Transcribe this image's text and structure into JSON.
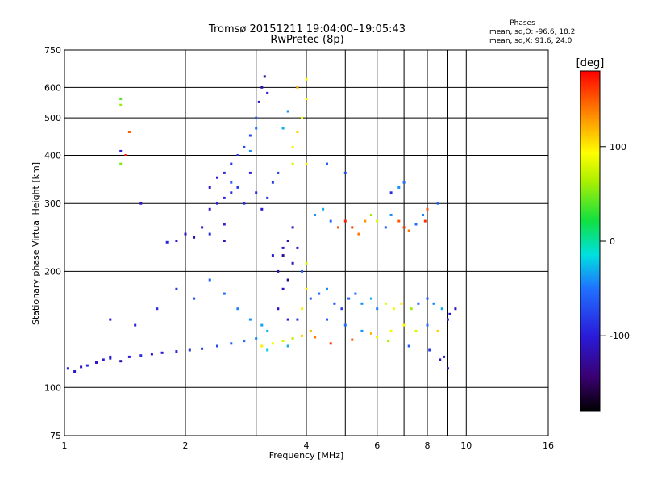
{
  "header": {
    "title": "Tromsø 20151211 19:04:00–19:05:43",
    "subtitle": "RwPretec (8p)",
    "phases_title": "Phases",
    "phases_o": "mean, sd,O: -96.6, 18.2",
    "phases_x": "mean, sd,X:  91.6, 24.0"
  },
  "chart_data": {
    "type": "scatter",
    "xlabel": "Frequency [MHz]",
    "ylabel": "Stationary phase Virtual Height [km]",
    "x_scale": "log",
    "y_scale": "log",
    "xlim": [
      1,
      16
    ],
    "ylim": [
      75,
      750
    ],
    "x_ticks": [
      1,
      2,
      4,
      6,
      8,
      10,
      16
    ],
    "x_minor_grid": [
      3,
      5,
      7,
      9
    ],
    "y_ticks": [
      75,
      100,
      200,
      300,
      400,
      500,
      600,
      750
    ],
    "grid": true,
    "colorbar": {
      "label": "[deg]",
      "range": [
        -180,
        180
      ],
      "ticks": [
        100,
        0,
        -100
      ],
      "colormap": "rainbow (black–purple–blue–cyan–green–yellow–red)"
    },
    "series": [
      {
        "points": [
          [
            1.02,
            112,
            -95
          ],
          [
            1.06,
            110,
            -100
          ],
          [
            1.1,
            113,
            -110
          ],
          [
            1.14,
            114,
            -90
          ],
          [
            1.2,
            116,
            -105
          ],
          [
            1.25,
            118,
            -100
          ],
          [
            1.3,
            119,
            -95
          ],
          [
            1.38,
            117,
            -120
          ],
          [
            1.45,
            120,
            -100
          ],
          [
            1.55,
            121,
            -90
          ],
          [
            1.65,
            122,
            -105
          ],
          [
            1.75,
            123,
            -100
          ],
          [
            1.9,
            124,
            -95
          ],
          [
            2.05,
            125,
            -85
          ],
          [
            2.2,
            126,
            -80
          ],
          [
            2.4,
            128,
            -70
          ],
          [
            2.6,
            130,
            -60
          ],
          [
            2.8,
            132,
            -50
          ],
          [
            3.0,
            134,
            -40
          ],
          [
            3.2,
            140,
            -30
          ],
          [
            1.3,
            150,
            -100
          ],
          [
            1.5,
            145,
            -95
          ],
          [
            1.7,
            160,
            -90
          ],
          [
            1.9,
            180,
            -80
          ],
          [
            2.1,
            170,
            -70
          ],
          [
            2.3,
            190,
            -60
          ],
          [
            2.5,
            175,
            -55
          ],
          [
            2.7,
            160,
            -45
          ],
          [
            2.9,
            150,
            -40
          ],
          [
            3.1,
            145,
            -35
          ],
          [
            1.38,
            560,
            40
          ],
          [
            1.38,
            540,
            60
          ],
          [
            1.45,
            460,
            150
          ],
          [
            1.38,
            410,
            -100
          ],
          [
            1.42,
            400,
            170
          ],
          [
            1.38,
            380,
            50
          ],
          [
            1.55,
            300,
            -110
          ],
          [
            1.3,
            120,
            -100
          ]
        ]
      },
      {
        "points": [
          [
            2.3,
            290,
            -100
          ],
          [
            2.4,
            300,
            -95
          ],
          [
            2.5,
            310,
            -90
          ],
          [
            2.6,
            320,
            -85
          ],
          [
            2.7,
            330,
            -80
          ],
          [
            2.3,
            330,
            -105
          ],
          [
            2.4,
            350,
            -100
          ],
          [
            2.5,
            360,
            -90
          ],
          [
            2.6,
            380,
            -85
          ],
          [
            2.7,
            400,
            -80
          ],
          [
            2.8,
            420,
            -75
          ],
          [
            2.9,
            450,
            -70
          ],
          [
            3.0,
            500,
            -65
          ],
          [
            3.05,
            550,
            -110
          ],
          [
            3.1,
            600,
            -120
          ],
          [
            3.15,
            640,
            -130
          ],
          [
            3.2,
            580,
            -100
          ],
          [
            2.9,
            360,
            -95
          ],
          [
            3.0,
            320,
            -90
          ],
          [
            3.1,
            290,
            -100
          ],
          [
            3.2,
            310,
            -85
          ],
          [
            3.3,
            340,
            -80
          ],
          [
            3.4,
            360,
            -75
          ],
          [
            2.2,
            260,
            -100
          ],
          [
            2.0,
            250,
            -110
          ],
          [
            2.5,
            265,
            -95
          ],
          [
            2.8,
            300,
            -90
          ],
          [
            2.6,
            340,
            -60
          ],
          [
            2.9,
            410,
            -40
          ],
          [
            3.0,
            470,
            -50
          ]
        ]
      },
      {
        "points": [
          [
            3.5,
            220,
            -130
          ],
          [
            3.6,
            240,
            -120
          ],
          [
            3.7,
            260,
            -110
          ],
          [
            3.4,
            200,
            -120
          ],
          [
            3.5,
            180,
            -110
          ],
          [
            3.6,
            190,
            -130
          ],
          [
            3.7,
            210,
            -115
          ],
          [
            3.8,
            230,
            -100
          ],
          [
            3.9,
            200,
            -60
          ],
          [
            4.0,
            210,
            80
          ],
          [
            4.0,
            180,
            100
          ],
          [
            3.9,
            160,
            90
          ],
          [
            3.8,
            150,
            -80
          ],
          [
            3.6,
            150,
            -100
          ],
          [
            3.4,
            160,
            -110
          ],
          [
            3.7,
            420,
            100
          ],
          [
            3.8,
            460,
            110
          ],
          [
            3.9,
            500,
            90
          ],
          [
            4.0,
            560,
            95
          ],
          [
            3.6,
            520,
            -40
          ],
          [
            3.5,
            470,
            -30
          ],
          [
            3.8,
            600,
            120
          ],
          [
            4.0,
            630,
            95
          ],
          [
            3.7,
            380,
            80
          ],
          [
            4.0,
            380,
            100
          ]
        ]
      },
      {
        "points": [
          [
            4.2,
            280,
            -40
          ],
          [
            4.4,
            290,
            -30
          ],
          [
            4.6,
            270,
            -50
          ],
          [
            4.8,
            260,
            150
          ],
          [
            5.0,
            270,
            170
          ],
          [
            5.2,
            260,
            160
          ],
          [
            5.4,
            250,
            140
          ],
          [
            5.6,
            270,
            130
          ],
          [
            5.8,
            280,
            60
          ],
          [
            6.0,
            270,
            80
          ],
          [
            6.3,
            260,
            -60
          ],
          [
            6.5,
            280,
            -40
          ],
          [
            6.8,
            270,
            150
          ],
          [
            7.0,
            260,
            160
          ],
          [
            7.2,
            255,
            140
          ],
          [
            7.5,
            265,
            -50
          ],
          [
            7.8,
            280,
            -45
          ],
          [
            8.0,
            290,
            150
          ],
          [
            7.9,
            270,
            165
          ],
          [
            6.8,
            330,
            -40
          ],
          [
            7.0,
            340,
            -50
          ],
          [
            4.5,
            380,
            -60
          ],
          [
            5.0,
            360,
            -70
          ],
          [
            6.5,
            320,
            -90
          ],
          [
            8.5,
            300,
            -60
          ]
        ]
      },
      {
        "points": [
          [
            4.1,
            170,
            -60
          ],
          [
            4.3,
            175,
            -50
          ],
          [
            4.5,
            180,
            -40
          ],
          [
            4.7,
            165,
            -70
          ],
          [
            4.9,
            160,
            -80
          ],
          [
            5.1,
            170,
            -60
          ],
          [
            5.3,
            175,
            -50
          ],
          [
            5.5,
            165,
            -40
          ],
          [
            5.8,
            170,
            -30
          ],
          [
            6.0,
            160,
            -45
          ],
          [
            6.3,
            165,
            80
          ],
          [
            6.6,
            160,
            90
          ],
          [
            6.9,
            165,
            100
          ],
          [
            7.3,
            160,
            60
          ],
          [
            7.6,
            165,
            -50
          ],
          [
            8.0,
            170,
            -60
          ],
          [
            8.3,
            165,
            -40
          ],
          [
            8.7,
            160,
            -30
          ],
          [
            9.1,
            155,
            -100
          ],
          [
            9.4,
            160,
            -110
          ],
          [
            4.5,
            150,
            -60
          ],
          [
            5.0,
            145,
            -50
          ],
          [
            5.5,
            140,
            -40
          ],
          [
            6.0,
            135,
            100
          ],
          [
            6.5,
            140,
            90
          ],
          [
            7.0,
            145,
            95
          ],
          [
            7.5,
            140,
            80
          ],
          [
            8.0,
            145,
            -50
          ],
          [
            8.5,
            140,
            110
          ],
          [
            9.0,
            150,
            -80
          ],
          [
            4.2,
            135,
            140
          ],
          [
            4.6,
            130,
            160
          ],
          [
            5.2,
            133,
            150
          ],
          [
            5.8,
            138,
            120
          ],
          [
            6.4,
            132,
            60
          ],
          [
            7.2,
            128,
            -60
          ],
          [
            8.1,
            125,
            -80
          ],
          [
            8.8,
            120,
            -90
          ],
          [
            9.0,
            112,
            -100
          ],
          [
            8.6,
            118,
            -110
          ]
        ]
      },
      {
        "points": [
          [
            3.1,
            128,
            100
          ],
          [
            3.3,
            130,
            90
          ],
          [
            3.5,
            132,
            80
          ],
          [
            3.7,
            134,
            70
          ],
          [
            3.9,
            136,
            110
          ],
          [
            4.1,
            140,
            120
          ],
          [
            3.2,
            125,
            -20
          ],
          [
            3.6,
            128,
            -30
          ],
          [
            2.5,
            240,
            -110
          ],
          [
            2.3,
            250,
            -90
          ],
          [
            2.1,
            245,
            -120
          ],
          [
            1.9,
            240,
            -100
          ],
          [
            1.8,
            238,
            -95
          ],
          [
            3.3,
            220,
            -100
          ],
          [
            3.5,
            230,
            -110
          ]
        ]
      }
    ]
  }
}
